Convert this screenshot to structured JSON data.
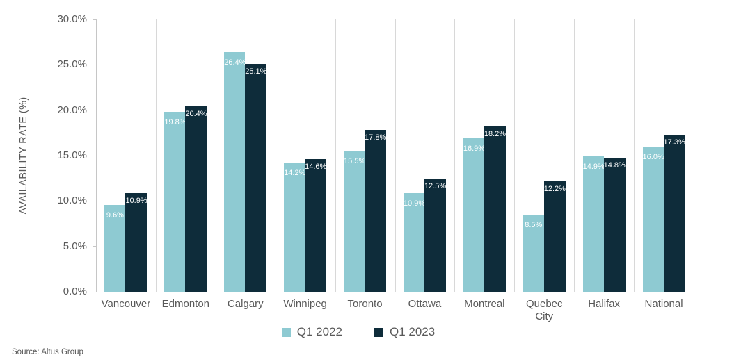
{
  "chart_data": {
    "type": "bar",
    "title": "",
    "categories": [
      "Vancouver",
      "Edmonton",
      "Calgary",
      "Winnipeg",
      "Toronto",
      "Ottawa",
      "Montreal",
      "Quebec City",
      "Halifax",
      "National"
    ],
    "series": [
      {
        "name": "Q1 2022",
        "color": "#8ecad2",
        "values": [
          9.6,
          19.8,
          26.4,
          14.2,
          15.5,
          10.9,
          16.9,
          8.5,
          14.9,
          16.0
        ]
      },
      {
        "name": "Q1 2023",
        "color": "#0e2c3a",
        "values": [
          10.9,
          20.4,
          25.1,
          14.6,
          17.8,
          12.5,
          18.2,
          12.2,
          14.8,
          17.3
        ]
      }
    ],
    "xlabel": "",
    "ylabel": "AVAILABILITY RATE (%)",
    "ylim": [
      0,
      30
    ],
    "ytick_step": 5,
    "ytick_labels": [
      "0.0%",
      "5.0%",
      "10.0%",
      "15.0%",
      "20.0%",
      "25.0%",
      "30.0%"
    ],
    "value_label_position": "inside-top",
    "value_label_suffix": "%",
    "legend_position": "bottom",
    "grid": "vertical-category-separators"
  },
  "footer": {
    "source_label": "Source: Altus Group"
  },
  "style": {
    "axis_color": "#c6c6c6",
    "separator_color": "#d8d8d8",
    "text_color": "#595959",
    "value_label_color": "#ffffff",
    "background": "#ffffff"
  }
}
